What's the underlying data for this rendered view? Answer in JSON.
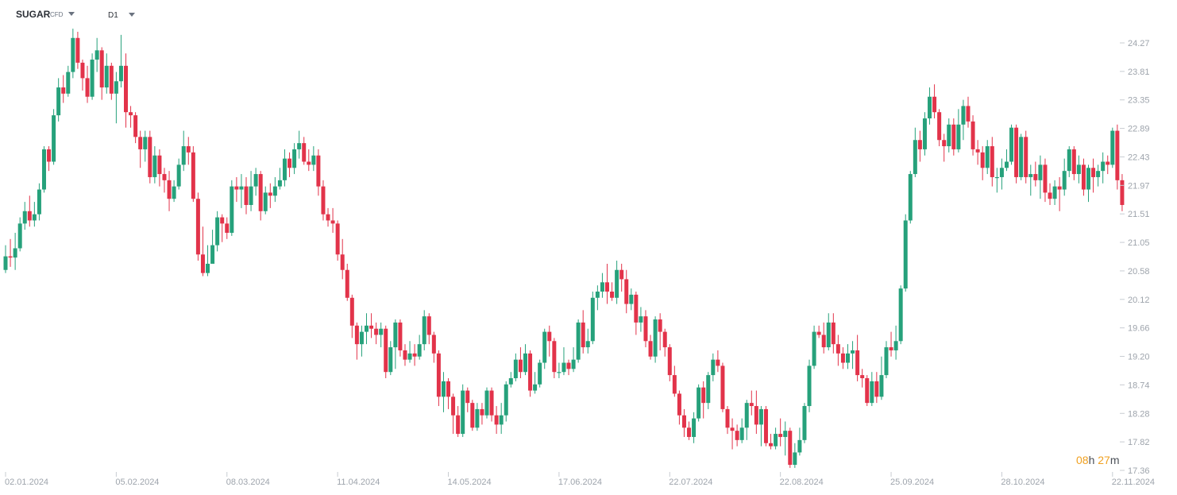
{
  "header": {
    "symbol": "SUGAR",
    "symbol_type": "CFD",
    "timeframe": "D1"
  },
  "countdown": {
    "hours": "08",
    "h": "h",
    "minutes": "27",
    "m": "m"
  },
  "colors": {
    "up": "#26a17b",
    "down": "#e2334a",
    "axis_text": "#9ea4ac",
    "countdown": "#f0a020"
  },
  "chart_data": {
    "type": "candlestick",
    "title": "",
    "xlabel": "",
    "ylabel": "",
    "ylim": [
      17.36,
      24.27
    ],
    "y_ticks": [
      "24.27",
      "23.81",
      "23.35",
      "22.89",
      "22.43",
      "21.97",
      "21.51",
      "21.05",
      "20.58",
      "20.12",
      "19.66",
      "19.20",
      "18.74",
      "18.28",
      "17.82",
      "17.36"
    ],
    "x_ticks": [
      {
        "label": "02.01.2024",
        "index": 0
      },
      {
        "label": "05.02.2024",
        "index": 23
      },
      {
        "label": "08.03.2024",
        "index": 46
      },
      {
        "label": "11.04.2024",
        "index": 69
      },
      {
        "label": "14.05.2024",
        "index": 92
      },
      {
        "label": "17.06.2024",
        "index": 115
      },
      {
        "label": "22.07.2024",
        "index": 138
      },
      {
        "label": "22.08.2024",
        "index": 161
      },
      {
        "label": "25.09.2024",
        "index": 184
      },
      {
        "label": "28.10.2024",
        "index": 207
      },
      {
        "label": "22.11.2024",
        "index": 230
      }
    ],
    "candles": [
      [
        20.6,
        20.82,
        21.0,
        20.55
      ],
      [
        20.82,
        20.8,
        21.1,
        20.65
      ],
      [
        20.8,
        20.95,
        21.2,
        20.6
      ],
      [
        20.95,
        21.35,
        21.45,
        20.9
      ],
      [
        21.35,
        21.55,
        21.7,
        21.25
      ],
      [
        21.55,
        21.4,
        21.8,
        21.3
      ],
      [
        21.4,
        21.5,
        21.7,
        21.3
      ],
      [
        21.5,
        21.9,
        22.0,
        21.4
      ],
      [
        21.9,
        22.55,
        22.6,
        21.85
      ],
      [
        22.55,
        22.35,
        22.6,
        22.2
      ],
      [
        22.35,
        23.1,
        23.2,
        22.3
      ],
      [
        23.1,
        23.55,
        23.7,
        23.0
      ],
      [
        23.55,
        23.45,
        23.75,
        23.3
      ],
      [
        23.45,
        23.8,
        23.9,
        23.4
      ],
      [
        23.8,
        24.35,
        24.5,
        23.7
      ],
      [
        24.35,
        23.95,
        24.45,
        23.85
      ],
      [
        23.95,
        23.7,
        24.0,
        23.5
      ],
      [
        23.7,
        23.4,
        23.9,
        23.3
      ],
      [
        23.4,
        24.0,
        24.1,
        23.35
      ],
      [
        24.0,
        24.15,
        24.35,
        23.8
      ],
      [
        24.15,
        23.55,
        24.2,
        23.35
      ],
      [
        23.55,
        23.9,
        24.1,
        23.45
      ],
      [
        23.9,
        23.45,
        23.95,
        23.35
      ],
      [
        23.45,
        23.65,
        23.8,
        22.97
      ],
      [
        23.65,
        23.9,
        24.4,
        23.55
      ],
      [
        23.9,
        23.15,
        24.1,
        22.9
      ],
      [
        23.15,
        23.1,
        23.25,
        22.9
      ],
      [
        23.1,
        22.75,
        23.15,
        22.65
      ],
      [
        22.75,
        22.55,
        22.85,
        22.25
      ],
      [
        22.55,
        22.75,
        22.85,
        22.35
      ],
      [
        22.75,
        22.1,
        22.85,
        22.0
      ],
      [
        22.1,
        22.45,
        22.6,
        22.0
      ],
      [
        22.45,
        22.15,
        22.55,
        21.95
      ],
      [
        22.15,
        22.05,
        22.25,
        21.85
      ],
      [
        22.05,
        21.75,
        22.2,
        21.55
      ],
      [
        21.75,
        21.95,
        22.05,
        21.7
      ],
      [
        21.95,
        22.3,
        22.4,
        21.9
      ],
      [
        22.3,
        22.6,
        22.85,
        22.2
      ],
      [
        22.6,
        22.5,
        22.75,
        22.3
      ],
      [
        22.5,
        21.75,
        22.6,
        21.7
      ],
      [
        21.75,
        20.85,
        21.85,
        20.75
      ],
      [
        20.85,
        20.55,
        21.3,
        20.5
      ],
      [
        20.55,
        20.7,
        21.0,
        20.5
      ],
      [
        20.7,
        21.0,
        21.25,
        20.8
      ],
      [
        21.0,
        21.45,
        21.55,
        20.9
      ],
      [
        21.45,
        21.35,
        21.5,
        21.05
      ],
      [
        21.35,
        21.2,
        21.45,
        21.1
      ],
      [
        21.2,
        21.95,
        22.05,
        21.15
      ],
      [
        21.95,
        21.9,
        22.1,
        21.7
      ],
      [
        21.9,
        21.95,
        22.15,
        21.6
      ],
      [
        21.95,
        21.65,
        22.1,
        21.5
      ],
      [
        21.65,
        21.95,
        22.2,
        21.55
      ],
      [
        21.95,
        22.15,
        22.25,
        21.8
      ],
      [
        22.15,
        21.55,
        22.2,
        21.4
      ],
      [
        21.55,
        21.85,
        21.95,
        21.5
      ],
      [
        21.85,
        21.8,
        22.0,
        21.6
      ],
      [
        21.8,
        21.95,
        22.1,
        21.7
      ],
      [
        21.95,
        22.05,
        22.25,
        21.9
      ],
      [
        22.05,
        22.4,
        22.55,
        21.95
      ],
      [
        22.4,
        22.25,
        22.5,
        22.1
      ],
      [
        22.25,
        22.55,
        22.65,
        22.15
      ],
      [
        22.55,
        22.65,
        22.85,
        22.4
      ],
      [
        22.65,
        22.35,
        22.75,
        22.3
      ],
      [
        22.35,
        22.3,
        22.55,
        22.2
      ],
      [
        22.3,
        22.45,
        22.6,
        22.2
      ],
      [
        22.45,
        21.95,
        22.55,
        21.8
      ],
      [
        21.95,
        21.5,
        22.05,
        21.4
      ],
      [
        21.5,
        21.4,
        21.6,
        21.3
      ],
      [
        21.4,
        21.35,
        21.6,
        21.2
      ],
      [
        21.35,
        20.85,
        21.4,
        20.75
      ],
      [
        20.85,
        20.6,
        21.1,
        20.45
      ],
      [
        20.6,
        20.15,
        20.7,
        20.1
      ],
      [
        20.15,
        19.7,
        20.2,
        19.5
      ],
      [
        19.7,
        19.4,
        19.75,
        19.15
      ],
      [
        19.4,
        19.6,
        19.7,
        19.2
      ],
      [
        19.6,
        19.7,
        19.9,
        19.4
      ],
      [
        19.7,
        19.65,
        19.9,
        19.5
      ],
      [
        19.65,
        19.55,
        19.75,
        19.4
      ],
      [
        19.55,
        19.65,
        19.75,
        19.35
      ],
      [
        19.65,
        18.95,
        19.7,
        18.85
      ],
      [
        18.95,
        19.35,
        19.45,
        18.9
      ],
      [
        19.35,
        19.75,
        19.8,
        19.0
      ],
      [
        19.75,
        19.3,
        19.8,
        19.2
      ],
      [
        19.3,
        19.15,
        19.4,
        19.05
      ],
      [
        19.15,
        19.25,
        19.45,
        19.1
      ],
      [
        19.25,
        19.2,
        19.4,
        19.05
      ],
      [
        19.2,
        19.4,
        19.55,
        19.15
      ],
      [
        19.4,
        19.85,
        19.95,
        19.3
      ],
      [
        19.85,
        19.55,
        19.9,
        19.4
      ],
      [
        19.55,
        19.25,
        19.6,
        19.1
      ],
      [
        19.25,
        18.55,
        19.3,
        18.4
      ],
      [
        18.55,
        18.8,
        18.95,
        18.3
      ],
      [
        18.8,
        18.55,
        18.85,
        18.35
      ],
      [
        18.55,
        18.25,
        18.6,
        17.95
      ],
      [
        18.25,
        17.95,
        18.4,
        17.9
      ],
      [
        17.95,
        18.65,
        18.75,
        17.9
      ],
      [
        18.65,
        18.45,
        18.7,
        18.3
      ],
      [
        18.45,
        18.05,
        18.5,
        18.0
      ],
      [
        18.05,
        18.35,
        18.45,
        18.0
      ],
      [
        18.35,
        18.25,
        18.45,
        18.1
      ],
      [
        18.25,
        18.65,
        18.7,
        18.2
      ],
      [
        18.65,
        18.25,
        18.7,
        18.15
      ],
      [
        18.25,
        18.1,
        18.4,
        17.95
      ],
      [
        18.1,
        18.25,
        18.45,
        17.95
      ],
      [
        18.25,
        18.75,
        18.8,
        18.15
      ],
      [
        18.75,
        18.85,
        18.95,
        18.7
      ],
      [
        18.85,
        19.15,
        19.25,
        18.8
      ],
      [
        19.15,
        18.95,
        19.35,
        18.85
      ],
      [
        18.95,
        19.25,
        19.4,
        18.9
      ],
      [
        19.25,
        18.65,
        19.3,
        18.55
      ],
      [
        18.65,
        18.75,
        18.95,
        18.6
      ],
      [
        18.75,
        19.1,
        19.15,
        18.7
      ],
      [
        19.1,
        19.6,
        19.65,
        19.0
      ],
      [
        19.6,
        19.45,
        19.7,
        19.2
      ],
      [
        19.45,
        18.95,
        19.5,
        18.85
      ],
      [
        18.95,
        18.95,
        19.1,
        18.85
      ],
      [
        18.95,
        19.1,
        19.35,
        18.9
      ],
      [
        19.1,
        19.0,
        19.15,
        18.9
      ],
      [
        19.0,
        19.15,
        19.35,
        18.95
      ],
      [
        19.15,
        19.75,
        19.8,
        19.1
      ],
      [
        19.75,
        19.35,
        19.95,
        19.25
      ],
      [
        19.35,
        19.45,
        19.65,
        19.25
      ],
      [
        19.45,
        20.15,
        20.25,
        19.4
      ],
      [
        20.15,
        20.25,
        20.35,
        19.95
      ],
      [
        20.25,
        20.4,
        20.55,
        20.15
      ],
      [
        20.4,
        20.25,
        20.7,
        20.05
      ],
      [
        20.25,
        20.15,
        20.4,
        20.1
      ],
      [
        20.15,
        20.6,
        20.75,
        20.05
      ],
      [
        20.6,
        20.45,
        20.7,
        20.25
      ],
      [
        20.45,
        20.05,
        20.6,
        19.9
      ],
      [
        20.05,
        20.2,
        20.3,
        19.95
      ],
      [
        20.2,
        19.75,
        20.25,
        19.55
      ],
      [
        19.75,
        19.85,
        20.0,
        19.6
      ],
      [
        19.85,
        19.45,
        19.95,
        19.35
      ],
      [
        19.45,
        19.2,
        19.55,
        19.15
      ],
      [
        19.2,
        19.8,
        19.85,
        19.1
      ],
      [
        19.8,
        19.6,
        19.9,
        19.3
      ],
      [
        19.6,
        19.35,
        19.65,
        19.2
      ],
      [
        19.35,
        18.9,
        19.4,
        18.8
      ],
      [
        18.9,
        18.6,
        19.05,
        18.55
      ],
      [
        18.6,
        18.25,
        18.65,
        18.1
      ],
      [
        18.25,
        18.05,
        18.35,
        17.9
      ],
      [
        18.05,
        17.9,
        18.15,
        17.85
      ],
      [
        17.9,
        18.2,
        18.3,
        17.8
      ],
      [
        18.2,
        18.7,
        18.75,
        18.15
      ],
      [
        18.7,
        18.45,
        18.8,
        18.2
      ],
      [
        18.45,
        18.9,
        18.95,
        18.35
      ],
      [
        18.9,
        19.15,
        19.25,
        18.8
      ],
      [
        19.15,
        19.05,
        19.3,
        18.95
      ],
      [
        19.05,
        18.35,
        19.1,
        18.3
      ],
      [
        18.35,
        18.05,
        18.4,
        17.95
      ],
      [
        18.05,
        18.0,
        18.2,
        17.7
      ],
      [
        18.0,
        17.85,
        18.1,
        17.75
      ],
      [
        17.85,
        18.05,
        18.2,
        17.8
      ],
      [
        18.05,
        18.45,
        18.5,
        17.85
      ],
      [
        18.45,
        18.4,
        18.65,
        18.25
      ],
      [
        18.4,
        18.1,
        18.65,
        17.95
      ],
      [
        18.1,
        18.35,
        18.4,
        17.75
      ],
      [
        18.35,
        17.8,
        18.4,
        17.75
      ],
      [
        17.8,
        17.75,
        17.95,
        17.7
      ],
      [
        17.75,
        17.95,
        18.05,
        17.7
      ],
      [
        17.95,
        17.9,
        18.2,
        17.75
      ],
      [
        17.9,
        18.0,
        18.15,
        17.6
      ],
      [
        18.0,
        17.45,
        18.05,
        17.4
      ],
      [
        17.45,
        17.65,
        17.8,
        17.4
      ],
      [
        17.65,
        17.85,
        18.05,
        17.6
      ],
      [
        17.85,
        18.4,
        18.45,
        17.8
      ],
      [
        18.4,
        19.05,
        19.15,
        18.3
      ],
      [
        19.05,
        19.6,
        19.7,
        19.0
      ],
      [
        19.6,
        19.55,
        19.7,
        19.5
      ],
      [
        19.55,
        19.35,
        19.75,
        19.25
      ],
      [
        19.35,
        19.75,
        19.9,
        19.3
      ],
      [
        19.75,
        19.4,
        19.9,
        19.25
      ],
      [
        19.4,
        19.25,
        19.55,
        19.05
      ],
      [
        19.25,
        19.1,
        19.35,
        19.0
      ],
      [
        19.1,
        19.25,
        19.4,
        19.0
      ],
      [
        19.25,
        19.3,
        19.45,
        19.0
      ],
      [
        19.3,
        18.9,
        19.55,
        18.8
      ],
      [
        18.9,
        18.85,
        19.0,
        18.7
      ],
      [
        18.85,
        18.45,
        18.9,
        18.4
      ],
      [
        18.45,
        18.8,
        18.95,
        18.4
      ],
      [
        18.8,
        18.55,
        18.95,
        18.45
      ],
      [
        18.55,
        18.9,
        19.2,
        18.5
      ],
      [
        18.9,
        19.35,
        19.45,
        18.85
      ],
      [
        19.35,
        19.3,
        19.6,
        19.2
      ],
      [
        19.3,
        19.45,
        19.7,
        19.15
      ],
      [
        19.45,
        20.3,
        20.35,
        19.4
      ],
      [
        20.3,
        21.4,
        21.5,
        20.25
      ],
      [
        21.4,
        22.15,
        22.2,
        21.35
      ],
      [
        22.15,
        22.7,
        22.9,
        22.1
      ],
      [
        22.7,
        22.55,
        22.85,
        22.35
      ],
      [
        22.55,
        23.05,
        23.15,
        22.45
      ],
      [
        23.05,
        23.4,
        23.55,
        22.95
      ],
      [
        23.4,
        23.15,
        23.6,
        23.05
      ],
      [
        23.15,
        22.7,
        23.2,
        22.6
      ],
      [
        22.7,
        22.6,
        22.8,
        22.35
      ],
      [
        22.6,
        22.95,
        23.05,
        22.5
      ],
      [
        22.95,
        22.55,
        23.05,
        22.45
      ],
      [
        22.55,
        22.95,
        23.2,
        22.5
      ],
      [
        22.95,
        23.25,
        23.35,
        22.7
      ],
      [
        23.25,
        23.0,
        23.4,
        22.9
      ],
      [
        23.0,
        22.55,
        23.1,
        22.45
      ],
      [
        22.55,
        22.5,
        22.7,
        22.3
      ],
      [
        22.5,
        22.25,
        22.6,
        22.05
      ],
      [
        22.25,
        22.6,
        22.7,
        22.15
      ],
      [
        22.6,
        22.1,
        22.75,
        21.95
      ],
      [
        22.1,
        22.1,
        22.25,
        21.85
      ],
      [
        22.1,
        22.25,
        22.4,
        21.9
      ],
      [
        22.25,
        22.35,
        22.55,
        22.2
      ],
      [
        22.35,
        22.9,
        22.95,
        22.3
      ],
      [
        22.9,
        22.1,
        22.95,
        22.0
      ],
      [
        22.1,
        22.75,
        22.8,
        22.05
      ],
      [
        22.75,
        22.1,
        22.85,
        22.0
      ],
      [
        22.1,
        22.15,
        22.3,
        21.8
      ],
      [
        22.15,
        22.05,
        22.35,
        21.95
      ],
      [
        22.05,
        22.3,
        22.45,
        21.75
      ],
      [
        22.3,
        21.85,
        22.4,
        21.7
      ],
      [
        21.85,
        21.75,
        22.0,
        21.65
      ],
      [
        21.75,
        21.95,
        22.05,
        21.65
      ],
      [
        21.95,
        21.9,
        22.1,
        21.55
      ],
      [
        21.9,
        22.2,
        22.4,
        21.8
      ],
      [
        22.2,
        22.55,
        22.6,
        22.1
      ],
      [
        22.55,
        22.15,
        22.6,
        22.05
      ],
      [
        22.15,
        22.3,
        22.45,
        22.0
      ],
      [
        22.3,
        21.9,
        22.4,
        21.8
      ],
      [
        21.9,
        22.25,
        22.3,
        21.7
      ],
      [
        22.25,
        22.1,
        22.4,
        21.85
      ],
      [
        22.1,
        22.2,
        22.3,
        21.95
      ],
      [
        22.2,
        22.35,
        22.5,
        22.0
      ],
      [
        22.35,
        22.3,
        22.45,
        22.15
      ],
      [
        22.3,
        22.85,
        22.9,
        22.25
      ],
      [
        22.85,
        22.05,
        22.95,
        21.9
      ],
      [
        22.05,
        21.65,
        22.15,
        21.55
      ]
    ]
  }
}
